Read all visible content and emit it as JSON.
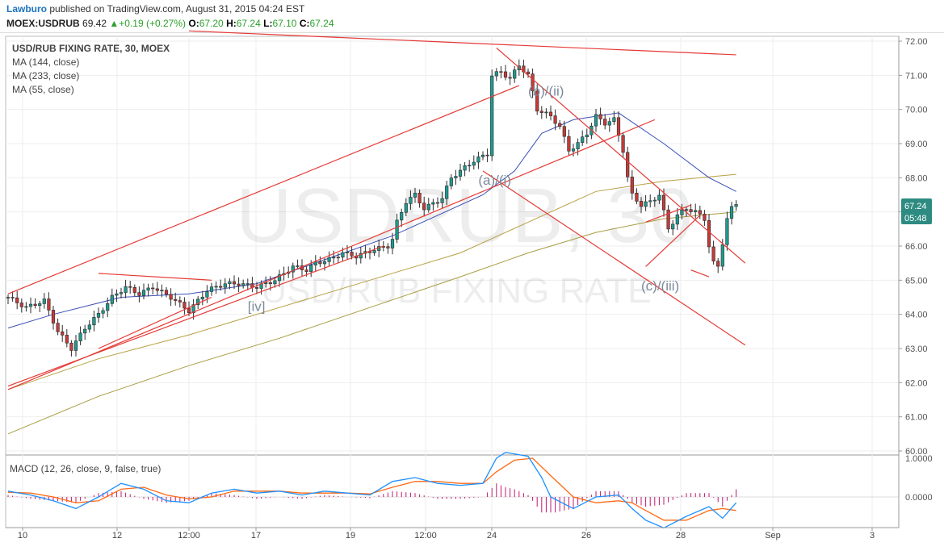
{
  "header": {
    "author": "Lawburo",
    "published_text": "published on TradingView.com, August 31, 2015 04:24 EST",
    "symbol": "MOEX:USDRUB",
    "last": "69.42",
    "change": "+0.19 (+0.27%)",
    "open_label": "O:",
    "open": "67.20",
    "high_label": "H:",
    "high": "67.24",
    "low_label": "L:",
    "low": "67.10",
    "close_label": "C:",
    "close": "67.24"
  },
  "watermark": {
    "line1": "USDRUB, 30",
    "line2": "USD/RUB FIXING RATE"
  },
  "legend": {
    "title": "USD/RUB FIXING RATE, 30, MOEX",
    "items": [
      "MA (144, close)",
      "MA (233, close)",
      "MA (55, close)"
    ],
    "macd": "MACD (12, 26, close, 9, false, true)"
  },
  "price_tag": {
    "price": "67.24",
    "time": "05:48"
  },
  "annotations": [
    "(b)/(ii)",
    "(a)/(i)",
    "(c)/(iii)",
    "[iv]"
  ],
  "colors": {
    "candle_up": "#1f9a8f",
    "candle_down": "#c43a3a",
    "candle_body": "#2b2b2b",
    "ma55": "#3b4fb8",
    "ma144": "#b8a043",
    "ma233": "#a89d42",
    "trend": "#e53935",
    "macd": "#1e90ff",
    "signal": "#ff6a13",
    "hist": "#c2186f",
    "tag": "#2e8b82"
  },
  "chart_data": {
    "type": "candlestick",
    "title": "USD/RUB FIXING RATE, 30, MOEX",
    "ylim": [
      60,
      72
    ],
    "y_ticks": [
      "72.00",
      "71.00",
      "70.00",
      "69.00",
      "68.00",
      "67.00",
      "66.00",
      "65.00",
      "64.00",
      "63.00",
      "62.00",
      "61.00",
      "60.00"
    ],
    "x_ticks": [
      "10",
      "12",
      "12:00",
      "17",
      "19",
      "12:00",
      "24",
      "26",
      "28",
      "Sep",
      "3"
    ],
    "macd_ticks": [
      "1.0000",
      "0.0000"
    ],
    "close_path": [
      [
        0,
        64.5
      ],
      [
        4,
        64.2
      ],
      [
        8,
        64.4
      ],
      [
        11,
        63.5
      ],
      [
        14,
        63.0
      ],
      [
        17,
        63.6
      ],
      [
        20,
        64.0
      ],
      [
        23,
        64.5
      ],
      [
        26,
        64.8
      ],
      [
        29,
        64.6
      ],
      [
        32,
        64.8
      ],
      [
        36,
        64.5
      ],
      [
        40,
        64.1
      ],
      [
        44,
        64.7
      ],
      [
        48,
        64.9
      ],
      [
        51,
        64.9
      ],
      [
        55,
        64.8
      ],
      [
        59,
        65.0
      ],
      [
        63,
        65.4
      ],
      [
        66,
        65.3
      ],
      [
        68,
        65.5
      ],
      [
        71,
        65.6
      ],
      [
        74,
        65.8
      ],
      [
        77,
        65.7
      ],
      [
        81,
        65.9
      ],
      [
        84,
        66.0
      ],
      [
        85,
        66.2
      ],
      [
        86,
        66.7
      ],
      [
        88,
        67.3
      ],
      [
        90,
        67.5
      ],
      [
        92,
        67.1
      ],
      [
        96,
        67.4
      ],
      [
        98,
        68.0
      ],
      [
        100,
        68.2
      ],
      [
        103,
        68.5
      ],
      [
        106,
        68.7
      ],
      [
        107,
        71.0
      ],
      [
        109,
        71.1
      ],
      [
        111,
        70.9
      ],
      [
        113,
        71.3
      ],
      [
        115,
        71.0
      ],
      [
        117,
        70.0
      ],
      [
        120,
        69.8
      ],
      [
        122,
        69.5
      ],
      [
        124,
        68.8
      ],
      [
        126,
        69.0
      ],
      [
        128,
        69.3
      ],
      [
        130,
        69.8
      ],
      [
        132,
        69.6
      ],
      [
        134,
        69.7
      ],
      [
        136,
        68.8
      ],
      [
        137,
        68.0
      ],
      [
        138,
        67.5
      ],
      [
        140,
        67.2
      ],
      [
        142,
        67.3
      ],
      [
        144,
        67.5
      ],
      [
        146,
        66.5
      ],
      [
        148,
        66.9
      ],
      [
        150,
        67.1
      ],
      [
        152,
        67.0
      ],
      [
        154,
        66.8
      ],
      [
        155,
        66.0
      ],
      [
        156,
        65.5
      ],
      [
        157,
        65.4
      ],
      [
        158,
        66.1
      ],
      [
        159,
        66.8
      ],
      [
        160,
        67.1
      ],
      [
        161,
        67.24
      ]
    ],
    "ma55": [
      [
        0,
        63.6
      ],
      [
        10,
        64.0
      ],
      [
        25,
        64.5
      ],
      [
        40,
        64.6
      ],
      [
        55,
        64.9
      ],
      [
        70,
        65.6
      ],
      [
        85,
        66.3
      ],
      [
        95,
        66.9
      ],
      [
        105,
        67.5
      ],
      [
        112,
        68.2
      ],
      [
        118,
        69.3
      ],
      [
        125,
        69.7
      ],
      [
        135,
        69.9
      ],
      [
        145,
        69.0
      ],
      [
        155,
        68.0
      ],
      [
        161,
        67.6
      ]
    ],
    "ma144": [
      [
        0,
        61.8
      ],
      [
        20,
        62.7
      ],
      [
        40,
        63.4
      ],
      [
        60,
        64.2
      ],
      [
        80,
        65.0
      ],
      [
        100,
        65.8
      ],
      [
        115,
        66.7
      ],
      [
        130,
        67.6
      ],
      [
        145,
        67.9
      ],
      [
        161,
        68.1
      ]
    ],
    "ma233": [
      [
        0,
        60.5
      ],
      [
        20,
        61.6
      ],
      [
        40,
        62.5
      ],
      [
        60,
        63.3
      ],
      [
        80,
        64.2
      ],
      [
        100,
        65.1
      ],
      [
        115,
        65.8
      ],
      [
        130,
        66.4
      ],
      [
        145,
        66.8
      ],
      [
        161,
        67.0
      ]
    ],
    "macd_line": [
      [
        0,
        0.15
      ],
      [
        5,
        0.05
      ],
      [
        10,
        -0.1
      ],
      [
        15,
        -0.3
      ],
      [
        20,
        0.0
      ],
      [
        25,
        0.35
      ],
      [
        30,
        0.2
      ],
      [
        35,
        -0.1
      ],
      [
        40,
        -0.15
      ],
      [
        45,
        0.1
      ],
      [
        50,
        0.2
      ],
      [
        55,
        0.1
      ],
      [
        60,
        0.15
      ],
      [
        65,
        0.05
      ],
      [
        70,
        0.15
      ],
      [
        75,
        0.1
      ],
      [
        80,
        0.05
      ],
      [
        85,
        0.4
      ],
      [
        90,
        0.5
      ],
      [
        95,
        0.35
      ],
      [
        100,
        0.3
      ],
      [
        105,
        0.35
      ],
      [
        108,
        1.0
      ],
      [
        110,
        1.15
      ],
      [
        115,
        1.05
      ],
      [
        118,
        0.5
      ],
      [
        120,
        0.0
      ],
      [
        125,
        -0.3
      ],
      [
        130,
        0.0
      ],
      [
        135,
        0.05
      ],
      [
        138,
        -0.3
      ],
      [
        141,
        -0.6
      ],
      [
        145,
        -0.8
      ],
      [
        150,
        -0.5
      ],
      [
        155,
        -0.25
      ],
      [
        158,
        -0.55
      ],
      [
        161,
        -0.15
      ]
    ],
    "signal_line": [
      [
        0,
        0.12
      ],
      [
        5,
        0.1
      ],
      [
        10,
        0.0
      ],
      [
        15,
        -0.15
      ],
      [
        20,
        -0.1
      ],
      [
        25,
        0.2
      ],
      [
        30,
        0.25
      ],
      [
        35,
        0.05
      ],
      [
        40,
        -0.05
      ],
      [
        45,
        0.0
      ],
      [
        50,
        0.15
      ],
      [
        55,
        0.15
      ],
      [
        60,
        0.15
      ],
      [
        65,
        0.1
      ],
      [
        70,
        0.1
      ],
      [
        75,
        0.1
      ],
      [
        80,
        0.08
      ],
      [
        85,
        0.25
      ],
      [
        90,
        0.4
      ],
      [
        95,
        0.4
      ],
      [
        100,
        0.35
      ],
      [
        105,
        0.35
      ],
      [
        108,
        0.65
      ],
      [
        112,
        0.95
      ],
      [
        116,
        1.0
      ],
      [
        120,
        0.55
      ],
      [
        125,
        0.0
      ],
      [
        130,
        -0.15
      ],
      [
        135,
        -0.1
      ],
      [
        138,
        -0.15
      ],
      [
        141,
        -0.35
      ],
      [
        145,
        -0.6
      ],
      [
        150,
        -0.6
      ],
      [
        155,
        -0.35
      ],
      [
        158,
        -0.3
      ],
      [
        161,
        -0.35
      ]
    ],
    "histogram": [
      [
        0,
        0.05
      ],
      [
        5,
        -0.05
      ],
      [
        10,
        -0.1
      ],
      [
        15,
        -0.15
      ],
      [
        20,
        0.1
      ],
      [
        25,
        0.15
      ],
      [
        30,
        -0.05
      ],
      [
        35,
        -0.15
      ],
      [
        40,
        -0.1
      ],
      [
        45,
        0.1
      ],
      [
        50,
        0.05
      ],
      [
        55,
        -0.05
      ],
      [
        60,
        0.0
      ],
      [
        65,
        -0.05
      ],
      [
        70,
        0.05
      ],
      [
        75,
        0.0
      ],
      [
        80,
        -0.03
      ],
      [
        85,
        0.15
      ],
      [
        90,
        0.1
      ],
      [
        95,
        -0.05
      ],
      [
        100,
        -0.05
      ],
      [
        105,
        0.0
      ],
      [
        108,
        0.35
      ],
      [
        110,
        0.25
      ],
      [
        112,
        0.2
      ],
      [
        115,
        0.05
      ],
      [
        118,
        -0.4
      ],
      [
        121,
        -0.4
      ],
      [
        125,
        -0.3
      ],
      [
        130,
        0.15
      ],
      [
        135,
        0.15
      ],
      [
        138,
        -0.15
      ],
      [
        141,
        -0.25
      ],
      [
        145,
        -0.2
      ],
      [
        150,
        0.1
      ],
      [
        155,
        0.1
      ],
      [
        158,
        -0.25
      ],
      [
        161,
        0.2
      ]
    ],
    "trendlines": [
      [
        [
          0,
          64.6
        ],
        [
          113,
          70.7
        ]
      ],
      [
        [
          0,
          61.8
        ],
        [
          143,
          69.7
        ]
      ],
      [
        [
          0,
          61.9
        ],
        [
          83,
          66.0
        ]
      ],
      [
        [
          20,
          65.2
        ],
        [
          45,
          65.0
        ]
      ],
      [
        [
          20,
          63.0
        ],
        [
          45,
          64.5
        ]
      ],
      [
        [
          40,
          72.3
        ],
        [
          161,
          71.6
        ]
      ],
      [
        [
          108,
          71.8
        ],
        [
          163,
          65.5
        ]
      ],
      [
        [
          105,
          68.2
        ],
        [
          163,
          63.1
        ]
      ],
      [
        [
          141,
          66.7
        ],
        [
          151,
          67.2
        ]
      ],
      [
        [
          141,
          65.4
        ],
        [
          153,
          66.9
        ]
      ],
      [
        [
          151,
          65.3
        ],
        [
          155,
          65.1
        ]
      ]
    ],
    "ann_positions": [
      [
        "(b)/(ii)",
        115,
        70.4
      ],
      [
        "(a)/(i)",
        104,
        67.8
      ],
      [
        "(c)/(iii)",
        140,
        64.7
      ],
      [
        "[iv]",
        53,
        64.1
      ]
    ]
  }
}
